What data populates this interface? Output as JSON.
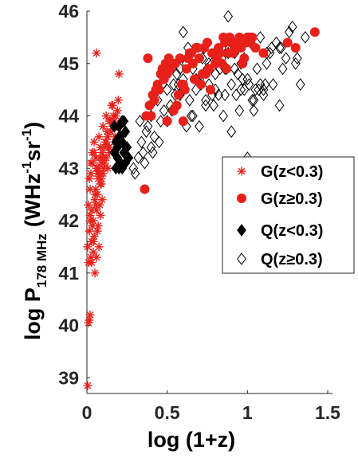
{
  "chart_data": {
    "type": "scatter",
    "title": "",
    "xlabel": "log (1+z)",
    "ylabel_parts": {
      "main": "log P",
      "sub": "178 MHz",
      "unit": "(WHz",
      "exp1": "-1",
      "mid": "sr",
      "exp2": "-1",
      "close": ")"
    },
    "xlim": [
      0,
      1.5
    ],
    "ylim": [
      38.7,
      46
    ],
    "xticks": [
      "0",
      "0.5",
      "1",
      "1.5"
    ],
    "yticks": [
      "39",
      "40",
      "41",
      "42",
      "43",
      "44",
      "45",
      "46"
    ],
    "grid": false,
    "legend_position": "right",
    "series": [
      {
        "name": "G(z<0.3)",
        "marker": "asterisk",
        "color": "#e8201a",
        "x": [
          0.005,
          0.01,
          0.015,
          0.02,
          0.01,
          0.005,
          0.015,
          0.02,
          0.01,
          0.025,
          0.03,
          0.02,
          0.04,
          0.035,
          0.05,
          0.045,
          0.06,
          0.055,
          0.07,
          0.065,
          0.08,
          0.075,
          0.09,
          0.085,
          0.1,
          0.095,
          0.11,
          0.12,
          0.13,
          0.14,
          0.15,
          0.16,
          0.17,
          0.18,
          0.19,
          0.06,
          0.07,
          0.08,
          0.09,
          0.05,
          0.04,
          0.03,
          0.02,
          0.025,
          0.035,
          0.045,
          0.055,
          0.065,
          0.075,
          0.085,
          0.095,
          0.105,
          0.115,
          0.125,
          0.135,
          0.145,
          0.155,
          0.165,
          0.175,
          0.185,
          0.195,
          0.03,
          0.04,
          0.05,
          0.06,
          0.07,
          0.08,
          0.09,
          0.1,
          0.11,
          0.12,
          0.13,
          0.14,
          0.015,
          0.025,
          0.035,
          0.045,
          0.055,
          0.065,
          0.075,
          0.085,
          0.1,
          0.12,
          0.14,
          0.16,
          0.06,
          0.2
        ],
        "y": [
          38.85,
          40.05,
          40.1,
          40.2,
          41.2,
          41.5,
          41.8,
          42.0,
          42.3,
          41.3,
          41.6,
          42.1,
          41.4,
          41.9,
          42.4,
          41.7,
          42.2,
          42.6,
          42.8,
          42.5,
          42.9,
          43.0,
          43.1,
          42.7,
          43.2,
          43.3,
          43.4,
          43.5,
          43.6,
          43.3,
          43.7,
          43.8,
          43.9,
          44.0,
          44.1,
          45.2,
          43.0,
          43.2,
          42.8,
          42.5,
          42.0,
          42.2,
          42.6,
          42.9,
          43.1,
          43.3,
          42.3,
          41.8,
          41.5,
          42.1,
          42.4,
          43.0,
          43.5,
          43.7,
          43.4,
          43.9,
          44.2,
          44.0,
          43.6,
          43.8,
          44.3,
          41.2,
          41.6,
          41.0,
          41.3,
          41.9,
          42.3,
          42.7,
          42.9,
          43.1,
          43.2,
          43.0,
          43.4,
          42.8,
          43.1,
          43.3,
          43.5,
          43.2,
          42.9,
          43.6,
          43.4,
          43.8,
          44.0,
          43.9,
          44.2,
          43.0,
          44.8
        ]
      },
      {
        "name": "G(z≥0.3)",
        "marker": "circle",
        "color": "#e8201a",
        "x": [
          0.36,
          0.38,
          0.4,
          0.42,
          0.45,
          0.48,
          0.5,
          0.52,
          0.55,
          0.58,
          0.6,
          0.62,
          0.65,
          0.68,
          0.7,
          0.72,
          0.75,
          0.78,
          0.8,
          0.82,
          0.85,
          0.88,
          0.9,
          0.92,
          0.95,
          0.98,
          1.0,
          1.02,
          1.05,
          1.1,
          1.25,
          1.3,
          1.42,
          0.44,
          0.47,
          0.53,
          0.57,
          0.63,
          0.67,
          0.73,
          0.77,
          0.83,
          0.87,
          0.93,
          0.97,
          1.03,
          0.5,
          0.56,
          0.61,
          0.66,
          0.71,
          0.76,
          0.81,
          0.86,
          0.91,
          0.96,
          1.01,
          0.39,
          0.43,
          0.46,
          0.49,
          0.54,
          0.59,
          0.64,
          0.69,
          0.74,
          0.79,
          0.84,
          0.89,
          0.94,
          0.99,
          0.37,
          0.41,
          0.51,
          0.6
        ],
        "y": [
          42.6,
          45.1,
          44.0,
          44.3,
          44.5,
          44.7,
          44.8,
          44.9,
          45.0,
          45.1,
          44.6,
          44.9,
          45.2,
          45.3,
          45.1,
          44.8,
          45.4,
          45.2,
          45.0,
          45.3,
          45.5,
          45.2,
          45.4,
          45.3,
          45.5,
          45.1,
          45.5,
          45.4,
          45.3,
          45.2,
          45.4,
          45.3,
          45.6,
          44.6,
          44.9,
          45.0,
          44.4,
          45.1,
          44.7,
          45.3,
          44.5,
          45.2,
          44.9,
          45.4,
          45.0,
          45.5,
          43.9,
          44.2,
          44.5,
          45.0,
          44.6,
          44.9,
          45.1,
          45.4,
          45.2,
          45.3,
          45.5,
          44.2,
          44.5,
          44.8,
          45.0,
          44.1,
          44.6,
          45.2,
          45.3,
          44.8,
          45.2,
          45.0,
          45.5,
          45.3,
          45.4,
          44.0,
          44.4,
          45.1,
          43.9
        ]
      },
      {
        "name": "Q(z<0.3)",
        "marker": "filled-diamond",
        "color": "#000000",
        "x": [
          0.17,
          0.18,
          0.19,
          0.2,
          0.21,
          0.22,
          0.23,
          0.24,
          0.25,
          0.18,
          0.2,
          0.22,
          0.24,
          0.26,
          0.19,
          0.21,
          0.23,
          0.17,
          0.2,
          0.22
        ],
        "y": [
          43.8,
          43.5,
          43.2,
          43.0,
          43.6,
          43.9,
          43.3,
          43.1,
          43.4,
          43.0,
          43.8,
          43.5,
          43.7,
          43.2,
          43.4,
          43.1,
          43.9,
          43.3,
          43.6,
          43.0
        ]
      },
      {
        "name": "Q(z≥0.3)",
        "marker": "open-diamond",
        "color": "#000000",
        "x": [
          0.3,
          0.32,
          0.34,
          0.36,
          0.38,
          0.4,
          0.42,
          0.44,
          0.46,
          0.48,
          0.5,
          0.52,
          0.54,
          0.56,
          0.58,
          0.6,
          0.62,
          0.64,
          0.66,
          0.68,
          0.7,
          0.72,
          0.74,
          0.76,
          0.78,
          0.8,
          0.82,
          0.84,
          0.86,
          0.88,
          0.9,
          0.92,
          0.94,
          0.96,
          0.98,
          1.0,
          1.02,
          1.04,
          1.06,
          1.08,
          1.1,
          1.12,
          1.14,
          1.16,
          1.18,
          1.2,
          1.22,
          1.24,
          1.26,
          1.28,
          1.3,
          1.33,
          1.36,
          0.45,
          0.5,
          0.55,
          0.6,
          0.65,
          0.7,
          0.75,
          0.8,
          0.85,
          0.9,
          0.95,
          1.0,
          1.05,
          1.1,
          1.15,
          1.2,
          0.35,
          0.4,
          0.58,
          0.63,
          0.68,
          0.73,
          0.78,
          0.83,
          0.88,
          0.93,
          0.98,
          1.03,
          1.08,
          0.47,
          0.53,
          0.62,
          0.71,
          0.79,
          0.87,
          0.96,
          1.04,
          1.12,
          0.42,
          0.57,
          0.66,
          0.76,
          0.86,
          0.97,
          1.07,
          0.29,
          0.33,
          0.37,
          0.41,
          0.6,
          0.74,
          0.84,
          0.92,
          1.01,
          1.11,
          1.21,
          1.31
        ],
        "y": [
          42.9,
          43.2,
          43.5,
          43.1,
          43.8,
          44.0,
          43.6,
          44.3,
          43.9,
          44.1,
          44.5,
          44.2,
          44.6,
          44.8,
          44.4,
          44.7,
          45.0,
          44.3,
          44.9,
          44.5,
          44.7,
          45.1,
          44.2,
          44.6,
          45.0,
          44.8,
          44.4,
          45.3,
          44.9,
          45.9,
          44.6,
          45.2,
          44.8,
          44.5,
          45.1,
          44.7,
          45.4,
          44.3,
          44.9,
          45.5,
          44.5,
          45.0,
          45.2,
          44.6,
          45.4,
          45.3,
          44.9,
          45.1,
          45.6,
          45.7,
          45.0,
          44.6,
          45.5,
          43.5,
          43.9,
          44.4,
          45.6,
          44.0,
          43.8,
          44.9,
          44.5,
          44.0,
          43.7,
          44.1,
          43.2,
          44.5,
          44.4,
          45.3,
          44.2,
          43.3,
          43.4,
          44.9,
          45.3,
          44.7,
          45.3,
          44.4,
          44.9,
          45.2,
          44.4,
          44.5,
          44.3,
          44.6,
          44.6,
          44.1,
          43.8,
          44.6,
          44.2,
          44.9,
          45.0,
          44.1,
          45.2,
          44.3,
          44.6,
          44.0,
          45.0,
          44.4,
          44.7,
          44.5,
          43.0,
          43.9,
          43.7,
          43.3,
          44.5,
          44.3,
          45.1,
          44.9,
          44.6,
          44.6,
          45.3,
          45.1
        ]
      }
    ]
  }
}
